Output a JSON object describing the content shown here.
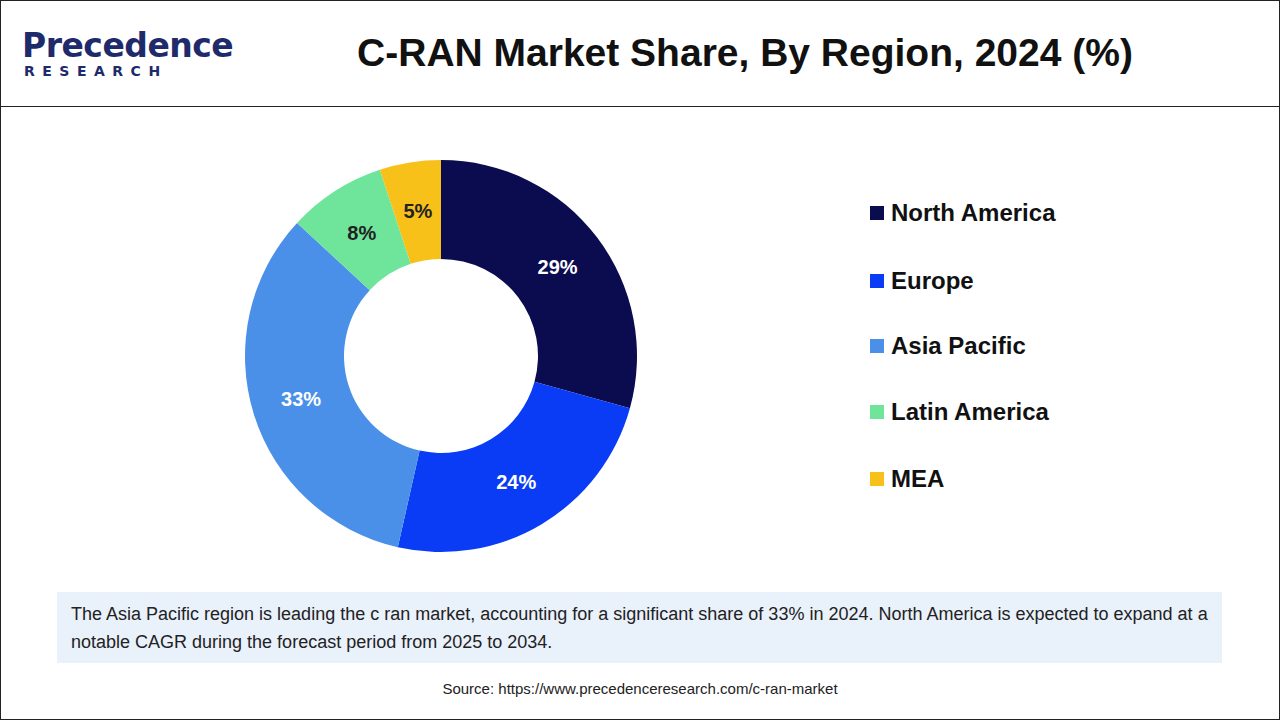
{
  "chart_data": {
    "type": "pie",
    "title": "C-RAN Market Share, By Region, 2024 (%)",
    "logo": [
      "Precedence",
      "RESEARCH"
    ],
    "categories": [
      "North America",
      "Europe",
      "Asia Pacific",
      "Latin America",
      "MEA"
    ],
    "values": [
      29,
      24,
      33,
      8,
      5
    ],
    "value_labels": [
      "29%",
      "24%",
      "33%",
      "8%",
      "5%"
    ],
    "colors": [
      "#0b0b4f",
      "#0a3cf5",
      "#4a90e8",
      "#6fe59b",
      "#f7c11a"
    ],
    "data_labels": true,
    "legend": "right",
    "annotations": [
      "The Asia Pacific region is leading the c ran market, accounting for a significant share of 33% in 2024. North America is expected to expand at a notable CAGR during the forecast period from 2025 to 2034."
    ],
    "source": "Source: https://www.precedenceresearch.com/c-ran-market"
  }
}
